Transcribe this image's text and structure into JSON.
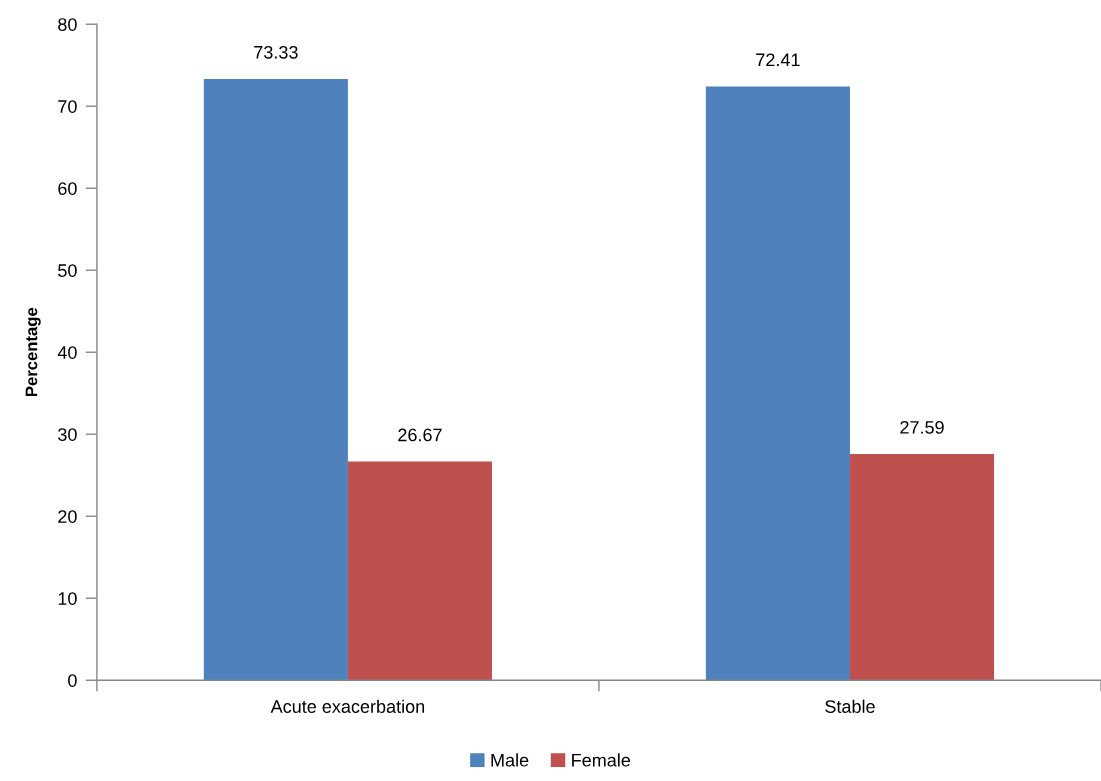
{
  "chart_data": {
    "type": "bar",
    "ylabel": "Percentage",
    "categories": [
      "Acute exacerbation",
      "Stable"
    ],
    "series": [
      {
        "name": "Male",
        "color": "#4f81bd",
        "values": [
          73.33,
          72.41
        ]
      },
      {
        "name": "Female",
        "color": "#c0504d",
        "values": [
          26.67,
          27.59
        ]
      }
    ],
    "ylim": [
      0,
      80
    ],
    "yticks": [
      0,
      10,
      20,
      30,
      40,
      50,
      60,
      70,
      80
    ],
    "data_labels": true,
    "legend": "bottom"
  }
}
